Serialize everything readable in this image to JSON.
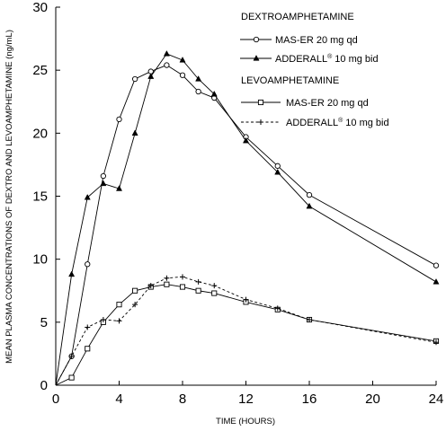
{
  "chart_data": {
    "type": "line",
    "title": "",
    "xlabel": "TIME (HOURS)",
    "ylabel": "MEAN  PLASMA CONCENTRATIONS OF DEXTRO AND LEVOAMPHETAMINE   (ng/mL)",
    "xlim": [
      0,
      24
    ],
    "ylim": [
      0,
      30
    ],
    "x_ticks": [
      "0",
      "4",
      "8",
      "12",
      "16",
      "20",
      "24"
    ],
    "y_ticks": [
      "0",
      "5",
      "10",
      "15",
      "20",
      "25",
      "30"
    ],
    "grid": false,
    "legend_position": "top-right",
    "legend_groups": [
      {
        "heading": "DEXTROAMPHETAMINE",
        "series": [
          0,
          1
        ]
      },
      {
        "heading": "LEVOAMPHETAMINE",
        "series": [
          2,
          3
        ]
      }
    ],
    "series": [
      {
        "name": "MAS-ER 20 mg qd",
        "marker": "circle-open",
        "line": "solid",
        "x": [
          0,
          1,
          2,
          3,
          4,
          5,
          6,
          7,
          8,
          9,
          10,
          12,
          14,
          16,
          24
        ],
        "y": [
          0,
          2.3,
          9.6,
          16.6,
          21.1,
          24.3,
          24.9,
          25.4,
          24.6,
          23.3,
          22.8,
          19.7,
          17.4,
          15.1,
          9.5
        ]
      },
      {
        "name": "ADDERALL® 10 mg bid",
        "name_main": "ADDERALL",
        "name_sup": "®",
        "name_rest": " 10 mg bid",
        "marker": "triangle-filled",
        "line": "solid",
        "x": [
          0,
          1,
          2,
          3,
          4,
          5,
          6,
          7,
          8,
          9,
          10,
          12,
          14,
          16,
          24
        ],
        "y": [
          0,
          8.8,
          14.9,
          16.0,
          15.6,
          20.0,
          24.5,
          26.3,
          25.8,
          24.3,
          23.1,
          19.4,
          16.9,
          14.2,
          8.2
        ]
      },
      {
        "name": "MAS-ER 20 mg qd",
        "marker": "square-open",
        "line": "solid",
        "x": [
          0,
          1,
          2,
          3,
          4,
          5,
          6,
          7,
          8,
          9,
          10,
          12,
          14,
          16,
          24
        ],
        "y": [
          0,
          0.6,
          2.9,
          5.0,
          6.4,
          7.5,
          7.8,
          8.0,
          7.8,
          7.5,
          7.3,
          6.6,
          6.0,
          5.2,
          3.5
        ]
      },
      {
        "name": "ADDERALL® 10 mg bid",
        "name_main": "ADDERALL",
        "name_sup": "®",
        "name_rest": " 10 mg bid",
        "marker": "plus",
        "line": "dashed",
        "x": [
          0,
          1,
          2,
          3,
          4,
          5,
          6,
          7,
          8,
          9,
          10,
          12,
          14,
          16,
          24
        ],
        "y": [
          0,
          2.3,
          4.6,
          5.2,
          5.1,
          6.4,
          7.9,
          8.5,
          8.6,
          8.2,
          7.9,
          6.8,
          6.1,
          5.2,
          3.4
        ]
      }
    ]
  }
}
